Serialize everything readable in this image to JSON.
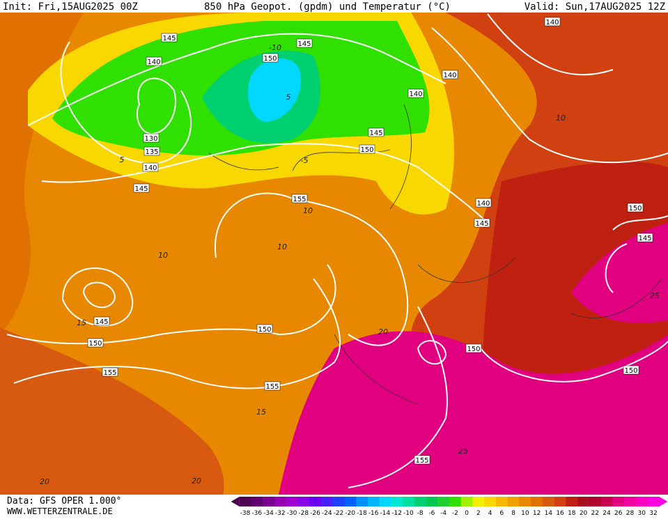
{
  "header": {
    "init": "Init: Fri,15AUG2025 00Z",
    "title": "850 hPa Geopot. (gpdm) und Temperatur (°C)",
    "valid": "Valid: Sun,17AUG2025 12Z"
  },
  "footer": {
    "source": "Data: GFS OPER 1.000°",
    "site": "WWW.WETTERZENTRALE.DE"
  },
  "geopotential_labels": [
    "145",
    "140",
    "150",
    "145",
    "140",
    "140",
    "140",
    "145",
    "150",
    "130",
    "135",
    "140",
    "145",
    "155",
    "140",
    "145",
    "150",
    "145",
    "150",
    "145",
    "150",
    "155",
    "155",
    "150",
    "150",
    "155"
  ],
  "temperature_labels": [
    "10",
    "10",
    "10",
    "5",
    "10",
    "15",
    "15",
    "20",
    "20",
    "25",
    "25",
    "20",
    "-5",
    "-10",
    "5"
  ],
  "color_scale": {
    "ticks": [
      -38,
      -36,
      -34,
      -32,
      -30,
      -28,
      -26,
      -24,
      -22,
      -20,
      -18,
      -16,
      -14,
      -12,
      -10,
      -8,
      -6,
      -4,
      -2,
      0,
      2,
      4,
      6,
      8,
      10,
      12,
      14,
      16,
      18,
      20,
      22,
      24,
      26,
      28,
      30,
      32
    ],
    "colors": [
      "#4b0050",
      "#600070",
      "#7a008f",
      "#9400b0",
      "#a000d0",
      "#8a00e8",
      "#6a00f0",
      "#4a20ff",
      "#2040ff",
      "#0060ff",
      "#0090ff",
      "#00b4ff",
      "#00d8ff",
      "#00e8d0",
      "#00e0a0",
      "#00d070",
      "#00c850",
      "#20d030",
      "#30e000",
      "#a0f000",
      "#f0f000",
      "#f8d800",
      "#f8b800",
      "#f0a000",
      "#e88800",
      "#e07000",
      "#d85a10",
      "#d04010",
      "#c02010",
      "#a81020",
      "#b00030",
      "#c80050",
      "#e00080",
      "#f000a0",
      "#ff00c0",
      "#ff00e0"
    ]
  }
}
